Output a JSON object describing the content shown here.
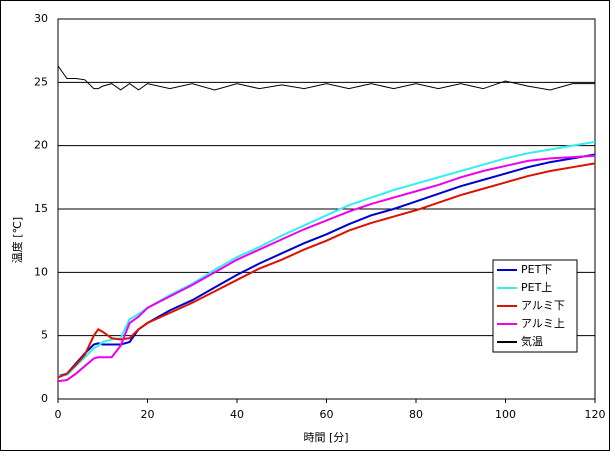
{
  "chart_data": {
    "type": "line",
    "xlabel": "時間 [分]",
    "ylabel": "温度 [℃]",
    "x": [
      0,
      2,
      4,
      6,
      8,
      9,
      10,
      12,
      14,
      16,
      18,
      20,
      25,
      30,
      35,
      40,
      45,
      50,
      55,
      60,
      65,
      70,
      75,
      80,
      85,
      90,
      95,
      100,
      105,
      110,
      115,
      120
    ],
    "series": [
      {
        "name": "PET下",
        "color": "#0000cc",
        "values": [
          1.8,
          2.0,
          2.8,
          3.6,
          4.3,
          4.4,
          4.3,
          4.3,
          4.3,
          4.5,
          5.5,
          6.0,
          7.0,
          7.8,
          8.8,
          9.8,
          10.7,
          11.5,
          12.3,
          13.0,
          13.8,
          14.5,
          15.0,
          15.6,
          16.2,
          16.8,
          17.3,
          17.8,
          18.3,
          18.7,
          19.0,
          19.3
        ]
      },
      {
        "name": "PET上",
        "color": "#33eeee",
        "values": [
          1.8,
          1.9,
          2.6,
          3.3,
          4.0,
          4.2,
          4.5,
          4.7,
          4.8,
          6.3,
          6.7,
          7.2,
          8.2,
          9.1,
          10.2,
          11.2,
          12.0,
          12.9,
          13.7,
          14.5,
          15.3,
          15.9,
          16.5,
          17.0,
          17.5,
          18.0,
          18.5,
          19.0,
          19.4,
          19.7,
          20.0,
          20.3
        ]
      },
      {
        "name": "アルミ下",
        "color": "#dd1100",
        "values": [
          1.7,
          2.0,
          2.7,
          3.5,
          5.0,
          5.5,
          5.3,
          4.8,
          4.7,
          4.8,
          5.5,
          6.0,
          6.8,
          7.6,
          8.5,
          9.4,
          10.3,
          11.0,
          11.8,
          12.5,
          13.3,
          13.9,
          14.4,
          14.9,
          15.5,
          16.1,
          16.6,
          17.1,
          17.6,
          18.0,
          18.3,
          18.6
        ]
      },
      {
        "name": "アルミ上",
        "color": "#ee00ee",
        "values": [
          1.4,
          1.5,
          2.0,
          2.6,
          3.2,
          3.3,
          3.3,
          3.3,
          4.2,
          6.0,
          6.5,
          7.2,
          8.1,
          9.0,
          10.0,
          11.0,
          11.8,
          12.6,
          13.4,
          14.1,
          14.8,
          15.4,
          15.9,
          16.4,
          16.9,
          17.5,
          18.0,
          18.4,
          18.8,
          19.0,
          19.1,
          19.2
        ]
      },
      {
        "name": "気温",
        "color": "#000000",
        "values": [
          26.3,
          25.3,
          25.3,
          25.2,
          24.5,
          24.5,
          24.7,
          24.9,
          24.4,
          24.9,
          24.4,
          24.9,
          24.5,
          24.9,
          24.4,
          24.9,
          24.5,
          24.8,
          24.5,
          24.9,
          24.5,
          24.9,
          24.5,
          24.9,
          24.5,
          24.9,
          24.5,
          25.1,
          24.7,
          24.4,
          24.9,
          24.9
        ]
      }
    ],
    "xlim": [
      0,
      120
    ],
    "xticks": [
      0,
      20,
      40,
      60,
      80,
      100,
      120
    ],
    "ylim": [
      0,
      30
    ],
    "yticks": [
      0,
      5,
      10,
      15,
      20,
      25,
      30
    ],
    "grid": true,
    "legend": "lower right"
  }
}
